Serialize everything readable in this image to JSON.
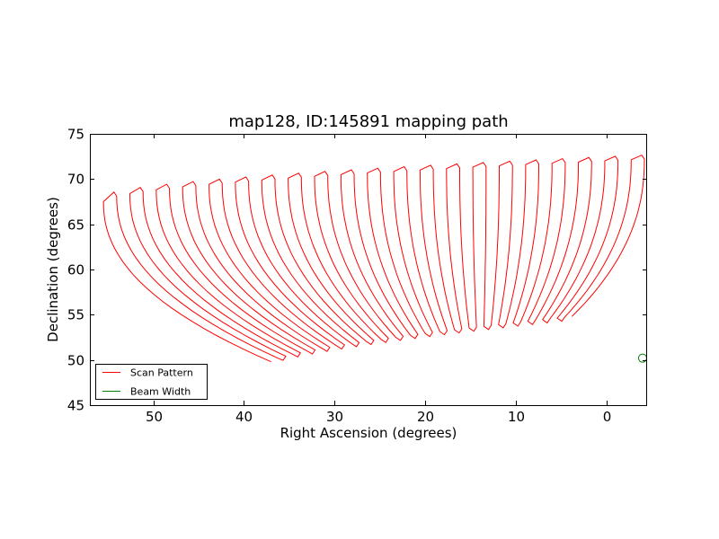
{
  "chart_data": {
    "type": "line",
    "title": "map128, ID:145891 mapping path",
    "xlabel": "Right Ascension (degrees)",
    "ylabel": "Declination (degrees)",
    "xlim": [
      57.0,
      -4.5
    ],
    "ylim": [
      45,
      75
    ],
    "xticks": [
      50,
      40,
      30,
      20,
      10,
      0
    ],
    "xtick_labels": [
      "50",
      "40",
      "30",
      "20",
      "10",
      "0"
    ],
    "yticks": [
      45,
      50,
      55,
      60,
      65,
      70,
      75
    ],
    "ytick_labels": [
      "45",
      "50",
      "55",
      "60",
      "65",
      "70",
      "75"
    ],
    "grid": false,
    "legend": {
      "location": "lower-left",
      "entries": [
        {
          "label": "Scan Pattern",
          "color": "#ff0000"
        },
        {
          "label": "Beam Width",
          "color": "#008000"
        }
      ]
    },
    "series": [
      {
        "name": "Scan Pattern",
        "color": "#ff0000",
        "description": "Boustrophedon scan legs running from low to high declination",
        "legs": {
          "count": 42,
          "top_dec_start": 67.5,
          "top_dec_end": 72.2,
          "top_ra_start": 55.5,
          "top_ra_end": -4.2,
          "bottom_ra_start": 37.0,
          "bottom_ra_end": 3.8,
          "bottom_dec_start": 49.8,
          "bottom_dec_end": 54.8,
          "curvature": 2.2
        }
      },
      {
        "name": "Beam Width",
        "color": "#008000",
        "marker": "circle",
        "center": [
          -4.0,
          50.2
        ],
        "radius_deg": 0.35
      }
    ]
  }
}
